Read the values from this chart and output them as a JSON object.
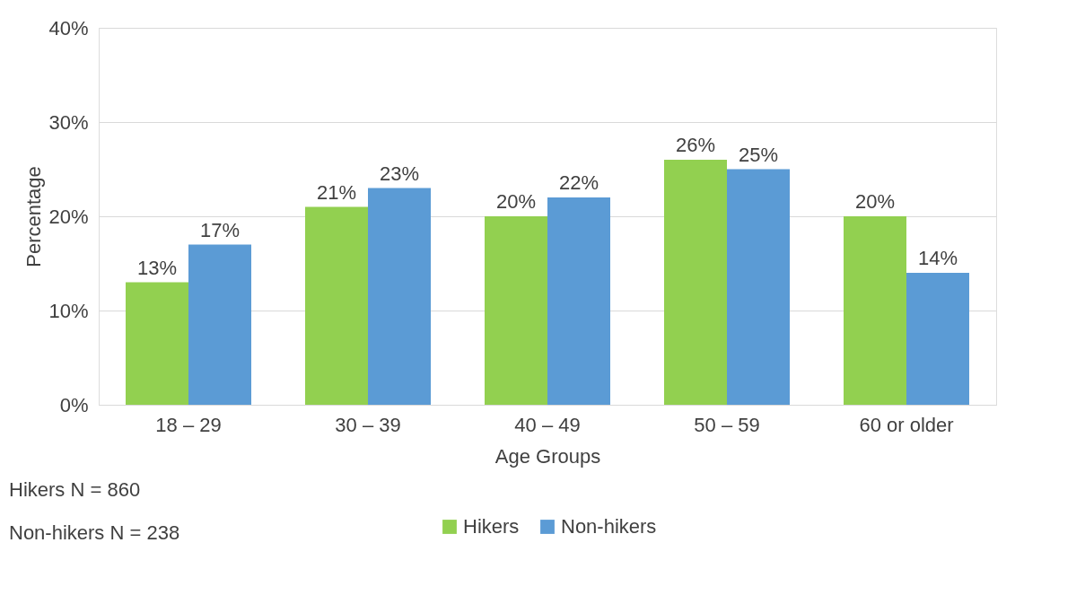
{
  "chart_data": {
    "type": "bar",
    "xlabel": "Age Groups",
    "ylabel": "Percentage",
    "categories": [
      "18 – 29",
      "30 – 39",
      "40 – 49",
      "50 – 59",
      "60 or older"
    ],
    "series": [
      {
        "name": "Hikers",
        "color": "#92d050",
        "values": [
          13,
          21,
          20,
          26,
          20
        ],
        "value_labels": [
          "13%",
          "21%",
          "20%",
          "26%",
          "20%"
        ]
      },
      {
        "name": "Non-hikers",
        "color": "#5b9bd5",
        "values": [
          17,
          23,
          22,
          25,
          14
        ],
        "value_labels": [
          "17%",
          "23%",
          "22%",
          "25%",
          "14%"
        ]
      }
    ],
    "ylim": [
      0,
      40
    ],
    "yticks": [
      {
        "value": 0,
        "label": "0%"
      },
      {
        "value": 10,
        "label": "10%"
      },
      {
        "value": 20,
        "label": "20%"
      },
      {
        "value": 30,
        "label": "30%"
      },
      {
        "value": 40,
        "label": "40%"
      }
    ],
    "grid": "y",
    "legend": "bottom",
    "annotations": [
      "Hikers N = 860",
      "Non-hikers N = 238"
    ]
  }
}
